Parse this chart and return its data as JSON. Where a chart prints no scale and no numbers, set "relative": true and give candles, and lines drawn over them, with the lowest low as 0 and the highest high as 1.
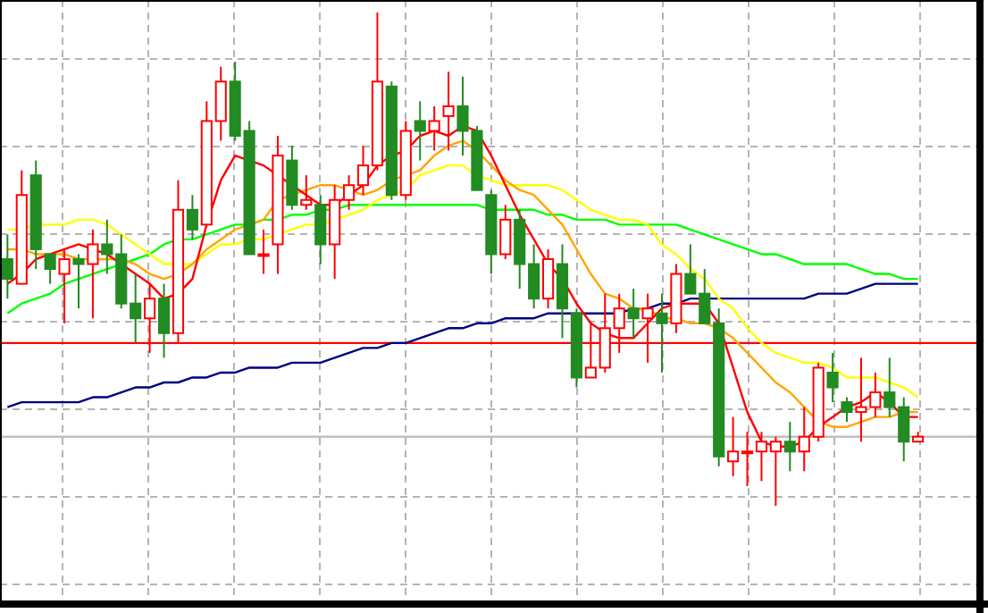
{
  "chart_data": {
    "type": "candlestick",
    "relative": true,
    "grid": true,
    "categories": [
      null,
      null,
      null,
      null,
      null,
      null,
      null,
      null,
      null,
      null,
      null,
      null,
      null,
      null,
      null,
      null,
      null,
      null,
      null,
      null,
      null,
      null,
      null,
      null,
      null,
      null,
      null,
      null,
      null,
      null,
      null,
      null,
      null,
      null,
      null,
      null,
      null,
      null,
      null,
      null,
      null,
      null,
      null,
      null,
      null,
      null,
      null,
      null,
      null,
      null,
      null,
      null,
      null,
      null,
      null,
      null,
      null,
      null,
      null,
      null,
      null,
      null,
      null,
      null,
      null
    ],
    "colors": [
      "#228b22",
      "#ff0000",
      "#228b22",
      "#228b22",
      "#ff0000",
      "#228b22",
      "#ff0000",
      "#228b22",
      "#228b22",
      "#228b22",
      "#ff0000",
      "#228b22",
      "#ff0000",
      "#228b22",
      "#ff0000",
      "#ff0000",
      "#228b22",
      "#228b22",
      "#ff0000",
      "#ff0000",
      "#228b22",
      "#ff0000",
      "#228b22",
      "#ff0000",
      "#ff0000",
      "#ff0000",
      "#ff0000",
      "#228b22",
      "#ff0000",
      "#228b22",
      "#ff0000",
      "#ff0000",
      "#228b22",
      "#228b22",
      "#228b22",
      "#ff0000",
      "#228b22",
      "#228b22",
      "#ff0000",
      "#228b22",
      "#228b22",
      "#ff0000",
      "#ff0000",
      "#ff0000",
      "#228b22",
      "#ff0000",
      "#228b22",
      "#ff0000",
      "#228b22",
      "#228b22",
      "#228b22",
      "#ff0000",
      "#ff0000",
      "#ff0000",
      "#ff0000",
      "#228b22",
      "#ff0000",
      "#ff0000",
      "#228b22",
      "#228b22",
      "#ff0000",
      "#ff0000",
      "#228b22",
      "#228b22",
      "#ff0000"
    ],
    "ohlc": [
      [
        0.5,
        0.55,
        0.42,
        0.46
      ],
      [
        0.45,
        0.68,
        0.45,
        0.63
      ],
      [
        0.67,
        0.7,
        0.48,
        0.52
      ],
      [
        0.51,
        0.51,
        0.45,
        0.48
      ],
      [
        0.47,
        0.52,
        0.37,
        0.5
      ],
      [
        0.5,
        0.51,
        0.4,
        0.49
      ],
      [
        0.49,
        0.56,
        0.38,
        0.53
      ],
      [
        0.53,
        0.58,
        0.47,
        0.51
      ],
      [
        0.51,
        0.55,
        0.4,
        0.41
      ],
      [
        0.41,
        0.47,
        0.33,
        0.38
      ],
      [
        0.38,
        0.45,
        0.31,
        0.42
      ],
      [
        0.42,
        0.45,
        0.3,
        0.35
      ],
      [
        0.35,
        0.66,
        0.33,
        0.6
      ],
      [
        0.6,
        0.63,
        0.54,
        0.56
      ],
      [
        0.57,
        0.82,
        0.57,
        0.78
      ],
      [
        0.78,
        0.89,
        0.74,
        0.86
      ],
      [
        0.86,
        0.9,
        0.74,
        0.75
      ],
      [
        0.76,
        0.78,
        0.51,
        0.51
      ],
      [
        0.51,
        0.56,
        0.47,
        0.51
      ],
      [
        0.53,
        0.75,
        0.47,
        0.71
      ],
      [
        0.7,
        0.73,
        0.6,
        0.61
      ],
      [
        0.61,
        0.67,
        0.6,
        0.62
      ],
      [
        0.61,
        0.63,
        0.49,
        0.53
      ],
      [
        0.53,
        0.65,
        0.46,
        0.62
      ],
      [
        0.62,
        0.67,
        0.6,
        0.65
      ],
      [
        0.65,
        0.73,
        0.63,
        0.69
      ],
      [
        0.69,
        1,
        0.68,
        0.86
      ],
      [
        0.85,
        0.86,
        0.62,
        0.63
      ],
      [
        0.63,
        0.78,
        0.62,
        0.76
      ],
      [
        0.78,
        0.82,
        0.7,
        0.76
      ],
      [
        0.76,
        0.81,
        0.72,
        0.78
      ],
      [
        0.79,
        0.88,
        0.72,
        0.81
      ],
      [
        0.81,
        0.87,
        0.71,
        0.76
      ],
      [
        0.76,
        0.77,
        0.64,
        0.64
      ],
      [
        0.63,
        0.64,
        0.47,
        0.51
      ],
      [
        0.51,
        0.61,
        0.5,
        0.58
      ],
      [
        0.58,
        0.6,
        0.44,
        0.49
      ],
      [
        0.49,
        0.53,
        0.4,
        0.42
      ],
      [
        0.42,
        0.52,
        0.4,
        0.5
      ],
      [
        0.49,
        0.53,
        0.34,
        0.4
      ],
      [
        0.39,
        0.4,
        0.24,
        0.26
      ],
      [
        0.26,
        0.37,
        0.26,
        0.28
      ],
      [
        0.28,
        0.43,
        0.27,
        0.36
      ],
      [
        0.36,
        0.43,
        0.31,
        0.4
      ],
      [
        0.4,
        0.44,
        0.34,
        0.38
      ],
      [
        0.38,
        0.43,
        0.29,
        0.4
      ],
      [
        0.39,
        0.43,
        0.27,
        0.37
      ],
      [
        0.37,
        0.49,
        0.35,
        0.47
      ],
      [
        0.47,
        0.53,
        0.43,
        0.43
      ],
      [
        0.43,
        0.48,
        0.37,
        0.37
      ],
      [
        0.37,
        0.4,
        0.08,
        0.1
      ],
      [
        0.09,
        0.18,
        0.06,
        0.11
      ],
      [
        0.11,
        0.15,
        0.04,
        0.11
      ],
      [
        0.11,
        0.15,
        0.05,
        0.13
      ],
      [
        0.11,
        0.14,
        0,
        0.13
      ],
      [
        0.13,
        0.17,
        0.07,
        0.11
      ],
      [
        0.11,
        0.2,
        0.07,
        0.14
      ],
      [
        0.14,
        0.29,
        0.13,
        0.28
      ],
      [
        0.27,
        0.31,
        0.21,
        0.24
      ],
      [
        0.21,
        0.22,
        0.17,
        0.19
      ],
      [
        0.19,
        0.3,
        0.13,
        0.2
      ],
      [
        0.2,
        0.27,
        0.18,
        0.23
      ],
      [
        0.23,
        0.3,
        0.18,
        0.2
      ],
      [
        0.2,
        0.22,
        0.09,
        0.13
      ],
      [
        0.13,
        0.15,
        0.13,
        0.14
      ]
    ],
    "series": [
      {
        "type": "line",
        "color": "#000080",
        "values": [
          0.2,
          0.21,
          0.21,
          0.21,
          0.21,
          0.21,
          0.22,
          0.22,
          0.23,
          0.24,
          0.24,
          0.25,
          0.25,
          0.26,
          0.26,
          0.27,
          0.27,
          0.28,
          0.28,
          0.28,
          0.29,
          0.29,
          0.29,
          0.3,
          0.31,
          0.32,
          0.32,
          0.33,
          0.33,
          0.34,
          0.35,
          0.36,
          0.36,
          0.37,
          0.37,
          0.38,
          0.38,
          0.38,
          0.39,
          0.39,
          0.39,
          0.39,
          0.39,
          0.39,
          0.4,
          0.4,
          0.41,
          0.41,
          0.42,
          0.42,
          0.42,
          0.42,
          0.42,
          0.42,
          0.42,
          0.42,
          0.42,
          0.43,
          0.43,
          0.43,
          0.44,
          0.45,
          0.45,
          0.45,
          0.45
        ]
      },
      {
        "type": "line",
        "color": "#00ff00",
        "values": [
          0.39,
          0.41,
          0.42,
          0.43,
          0.45,
          0.46,
          0.47,
          0.48,
          0.49,
          0.5,
          0.51,
          0.53,
          0.54,
          0.54,
          0.55,
          0.56,
          0.57,
          0.57,
          0.58,
          0.58,
          0.59,
          0.59,
          0.6,
          0.6,
          0.61,
          0.61,
          0.61,
          0.61,
          0.61,
          0.61,
          0.61,
          0.61,
          0.61,
          0.61,
          0.6,
          0.6,
          0.6,
          0.6,
          0.59,
          0.59,
          0.58,
          0.58,
          0.58,
          0.57,
          0.57,
          0.57,
          0.57,
          0.57,
          0.56,
          0.55,
          0.54,
          0.53,
          0.52,
          0.51,
          0.51,
          0.5,
          0.49,
          0.49,
          0.49,
          0.49,
          0.48,
          0.47,
          0.47,
          0.46,
          0.46
        ]
      },
      {
        "type": "line",
        "color": "#ffff00",
        "values": [
          0.56,
          0.56,
          0.57,
          0.57,
          0.57,
          0.58,
          0.58,
          0.57,
          0.55,
          0.53,
          0.51,
          0.49,
          0.49,
          0.49,
          0.51,
          0.53,
          0.53,
          0.54,
          0.54,
          0.55,
          0.56,
          0.57,
          0.57,
          0.58,
          0.59,
          0.6,
          0.62,
          0.63,
          0.64,
          0.67,
          0.68,
          0.69,
          0.69,
          0.67,
          0.66,
          0.65,
          0.65,
          0.65,
          0.65,
          0.64,
          0.62,
          0.6,
          0.59,
          0.58,
          0.58,
          0.57,
          0.53,
          0.51,
          0.48,
          0.46,
          0.42,
          0.4,
          0.36,
          0.33,
          0.31,
          0.3,
          0.29,
          0.29,
          0.28,
          0.26,
          0.26,
          0.26,
          0.25,
          0.24,
          0.22
        ]
      },
      {
        "type": "line",
        "color": "#ffa500",
        "values": [
          0.52,
          0.52,
          0.51,
          0.51,
          0.51,
          0.5,
          0.5,
          0.5,
          0.5,
          0.49,
          0.47,
          0.46,
          0.47,
          0.49,
          0.52,
          0.54,
          0.56,
          0.57,
          0.58,
          0.62,
          0.63,
          0.64,
          0.65,
          0.65,
          0.64,
          0.63,
          0.64,
          0.66,
          0.67,
          0.68,
          0.71,
          0.73,
          0.74,
          0.72,
          0.69,
          0.66,
          0.64,
          0.63,
          0.6,
          0.57,
          0.52,
          0.47,
          0.43,
          0.42,
          0.4,
          0.4,
          0.38,
          0.38,
          0.37,
          0.37,
          0.36,
          0.34,
          0.31,
          0.28,
          0.25,
          0.23,
          0.2,
          0.17,
          0.16,
          0.16,
          0.17,
          0.18,
          0.18,
          0.19,
          0.19
        ]
      },
      {
        "type": "line",
        "color": "#ff0000",
        "values": [
          0.45,
          0.47,
          0.5,
          0.51,
          0.52,
          0.53,
          0.52,
          0.51,
          0.49,
          0.47,
          0.45,
          0.42,
          0.43,
          0.46,
          0.57,
          0.66,
          0.71,
          0.7,
          0.69,
          0.67,
          0.65,
          0.63,
          0.61,
          0.61,
          0.63,
          0.65,
          0.69,
          0.71,
          0.72,
          0.75,
          0.76,
          0.75,
          0.77,
          0.76,
          0.71,
          0.65,
          0.59,
          0.54,
          0.49,
          0.46,
          0.41,
          0.37,
          0.35,
          0.34,
          0.34,
          0.37,
          0.4,
          0.41,
          0.41,
          0.41,
          0.37,
          0.28,
          0.19,
          0.13,
          0.12,
          0.12,
          0.13,
          0.16,
          0.18,
          0.2,
          0.21,
          0.23,
          0.21,
          0.18,
          0.18
        ]
      }
    ],
    "ref_lines": [
      {
        "axis": "y",
        "value": 0.33,
        "color": "#ff0000"
      },
      {
        "axis": "y",
        "value": 0.14,
        "color": "#c0c0c0"
      }
    ]
  }
}
